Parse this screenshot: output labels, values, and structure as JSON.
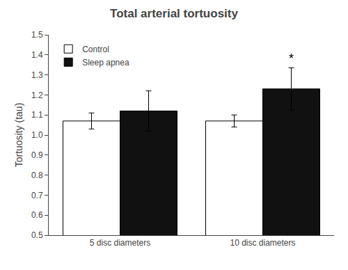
{
  "chart_data": {
    "type": "bar",
    "title": "Total arterial tortuosity",
    "ylabel": "Tortuosity (tau)",
    "categories": [
      "5 disc diameters",
      "10 disc diameters"
    ],
    "series": [
      {
        "name": "Control",
        "color": "white",
        "values": [
          1.07,
          1.07
        ],
        "errors": [
          0.04,
          0.03
        ]
      },
      {
        "name": "Sleep apnea",
        "color": "#111111",
        "values": [
          1.12,
          1.23
        ],
        "errors": [
          0.1,
          0.105
        ]
      }
    ],
    "ylim": [
      0.5,
      1.5
    ],
    "yticks": [
      0.5,
      0.6,
      0.7,
      0.8,
      0.9,
      {
        "value": 1.0,
        "label": "1.0"
      },
      1.1,
      1.2,
      1.3,
      1.4,
      1.5
    ],
    "annotations": [
      {
        "text": "*",
        "category": "10 disc diameters",
        "series": "Sleep apnea"
      }
    ],
    "legend": "upper left",
    "grid": false
  }
}
